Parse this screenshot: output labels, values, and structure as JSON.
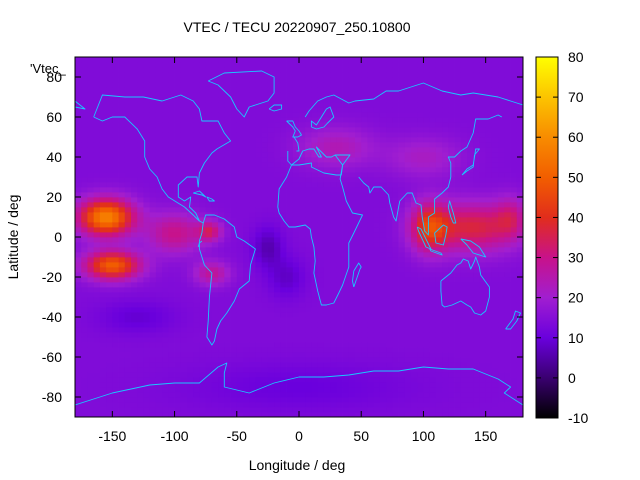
{
  "chart_data": {
    "type": "heatmap",
    "title": "VTEC / TECU 20220907_250.10800",
    "xlabel": "Longitude / deg",
    "ylabel": "Latitude / deg",
    "series_label": "'Vtec_",
    "xlim": [
      -180,
      180
    ],
    "ylim": [
      -90,
      90
    ],
    "xticks": [
      -150,
      -100,
      -50,
      0,
      50,
      100,
      150
    ],
    "yticks": [
      -80,
      -60,
      -40,
      -20,
      0,
      20,
      40,
      60,
      80
    ],
    "colorbar": {
      "min": -10,
      "max": 80,
      "ticks": [
        -10,
        0,
        10,
        20,
        30,
        40,
        50,
        60,
        70,
        80
      ],
      "palette": [
        {
          "v": -10,
          "color": "#000000"
        },
        {
          "v": 0,
          "color": "#3a0070"
        },
        {
          "v": 10,
          "color": "#6a00dd"
        },
        {
          "v": 20,
          "color": "#a11ed0"
        },
        {
          "v": 30,
          "color": "#c8128a"
        },
        {
          "v": 40,
          "color": "#e12d1c"
        },
        {
          "v": 50,
          "color": "#f25e00"
        },
        {
          "v": 60,
          "color": "#f88c00"
        },
        {
          "v": 70,
          "color": "#fcc400"
        },
        {
          "v": 80,
          "color": "#ffff00"
        }
      ]
    },
    "background_level": 14,
    "blobs": [
      {
        "lon": -155,
        "lat": 10,
        "slon": 22,
        "slat": 9,
        "amp": 44
      },
      {
        "lon": -150,
        "lat": -14,
        "slon": 22,
        "slat": 7,
        "amp": 36
      },
      {
        "lon": -100,
        "lat": 2,
        "slon": 22,
        "slat": 10,
        "amp": 16
      },
      {
        "lon": -72,
        "lat": 3,
        "slon": 10,
        "slat": 5,
        "amp": 18
      },
      {
        "lon": -70,
        "lat": -18,
        "slon": 14,
        "slat": 6,
        "amp": 14
      },
      {
        "lon": 105,
        "lat": 5,
        "slon": 15,
        "slat": 12,
        "amp": 26
      },
      {
        "lon": 140,
        "lat": 5,
        "slon": 35,
        "slat": 12,
        "amp": 23
      },
      {
        "lon": 170,
        "lat": 10,
        "slon": 12,
        "slat": 10,
        "amp": 12
      },
      {
        "lon": 30,
        "lat": 45,
        "slon": 30,
        "slat": 10,
        "amp": 10
      },
      {
        "lon": 100,
        "lat": 40,
        "slon": 30,
        "slat": 10,
        "amp": 8
      },
      {
        "lon": -25,
        "lat": -5,
        "slon": 12,
        "slat": 10,
        "amp": -8
      },
      {
        "lon": -10,
        "lat": -20,
        "slon": 15,
        "slat": 10,
        "amp": -6
      },
      {
        "lon": -130,
        "lat": -40,
        "slon": 30,
        "slat": 8,
        "amp": -5
      },
      {
        "lon": 0,
        "lat": -75,
        "slon": 90,
        "slat": 12,
        "amp": -4
      }
    ],
    "coastlines": [
      [
        [
          -165,
          60
        ],
        [
          -158,
          71
        ],
        [
          -140,
          70
        ],
        [
          -125,
          70
        ],
        [
          -110,
          68
        ],
        [
          -95,
          71
        ],
        [
          -85,
          68
        ],
        [
          -80,
          64
        ],
        [
          -78,
          58
        ],
        [
          -65,
          58
        ],
        [
          -60,
          52
        ],
        [
          -55,
          48
        ],
        [
          -66,
          44
        ],
        [
          -70,
          42
        ],
        [
          -76,
          37
        ],
        [
          -80,
          32
        ],
        [
          -81,
          25
        ],
        [
          -82,
          30
        ],
        [
          -90,
          30
        ],
        [
          -97,
          26
        ],
        [
          -97,
          20
        ],
        [
          -92,
          18
        ],
        [
          -87,
          20
        ],
        [
          -88,
          15
        ],
        [
          -83,
          12
        ],
        [
          -80,
          8
        ],
        [
          -77,
          7
        ],
        [
          -80,
          8
        ],
        [
          -85,
          11
        ],
        [
          -92,
          15
        ],
        [
          -105,
          20
        ],
        [
          -110,
          24
        ],
        [
          -114,
          30
        ],
        [
          -117,
          32
        ],
        [
          -120,
          34
        ],
        [
          -124,
          40
        ],
        [
          -124,
          46
        ],
        [
          -124,
          48
        ],
        [
          -130,
          54
        ],
        [
          -140,
          60
        ],
        [
          -150,
          60
        ],
        [
          -158,
          58
        ],
        [
          -165,
          60
        ]
      ],
      [
        [
          -77,
          7
        ],
        [
          -75,
          11
        ],
        [
          -68,
          11
        ],
        [
          -60,
          9
        ],
        [
          -52,
          5
        ],
        [
          -50,
          0
        ],
        [
          -44,
          -2
        ],
        [
          -35,
          -6
        ],
        [
          -39,
          -14
        ],
        [
          -40,
          -22
        ],
        [
          -48,
          -26
        ],
        [
          -52,
          -32
        ],
        [
          -58,
          -38
        ],
        [
          -63,
          -42
        ],
        [
          -66,
          -46
        ],
        [
          -68,
          -52
        ],
        [
          -70,
          -54
        ],
        [
          -74,
          -50
        ],
        [
          -73,
          -42
        ],
        [
          -72,
          -30
        ],
        [
          -70,
          -18
        ],
        [
          -76,
          -14
        ],
        [
          -80,
          -6
        ],
        [
          -80,
          -2
        ],
        [
          -78,
          2
        ],
        [
          -77,
          7
        ]
      ],
      [
        [
          -10,
          58
        ],
        [
          -5,
          58
        ],
        [
          -3,
          55
        ],
        [
          0,
          53
        ],
        [
          2,
          51
        ],
        [
          -1,
          50
        ],
        [
          -5,
          50
        ],
        [
          -3,
          53
        ],
        [
          -5,
          55
        ],
        [
          -10,
          58
        ]
      ],
      [
        [
          -9,
          43
        ],
        [
          -9,
          38
        ],
        [
          -6,
          36
        ],
        [
          0,
          39
        ],
        [
          3,
          43
        ],
        [
          8,
          44
        ],
        [
          12,
          44
        ],
        [
          16,
          40
        ],
        [
          18,
          40
        ],
        [
          14,
          45
        ],
        [
          22,
          40
        ],
        [
          26,
          40
        ],
        [
          29,
          41
        ],
        [
          35,
          36
        ],
        [
          34,
          31
        ],
        [
          30,
          31
        ],
        [
          20,
          32
        ],
        [
          10,
          35
        ],
        [
          10,
          37
        ],
        [
          0,
          36
        ],
        [
          -6,
          36
        ],
        [
          -10,
          30
        ],
        [
          -16,
          24
        ],
        [
          -17,
          15
        ],
        [
          -16,
          12
        ],
        [
          -12,
          8
        ],
        [
          -8,
          5
        ],
        [
          -3,
          5
        ],
        [
          5,
          6
        ],
        [
          9,
          4
        ],
        [
          10,
          0
        ],
        [
          12,
          -5
        ],
        [
          13,
          -12
        ],
        [
          12,
          -18
        ],
        [
          15,
          -27
        ],
        [
          18,
          -34
        ],
        [
          22,
          -34
        ],
        [
          28,
          -33
        ],
        [
          32,
          -28
        ],
        [
          35,
          -24
        ],
        [
          40,
          -15
        ],
        [
          40,
          -10
        ],
        [
          40,
          -3
        ],
        [
          44,
          2
        ],
        [
          51,
          11
        ],
        [
          43,
          12
        ],
        [
          38,
          18
        ],
        [
          35,
          25
        ],
        [
          33,
          29
        ],
        [
          35,
          36
        ],
        [
          41,
          41
        ],
        [
          29,
          41
        ]
      ],
      [
        [
          5,
          60
        ],
        [
          8,
          63
        ],
        [
          15,
          68
        ],
        [
          22,
          70
        ],
        [
          28,
          71
        ],
        [
          40,
          67
        ],
        [
          45,
          68
        ],
        [
          60,
          69
        ],
        [
          70,
          73
        ],
        [
          80,
          73
        ],
        [
          100,
          77
        ],
        [
          115,
          73
        ],
        [
          130,
          71
        ],
        [
          140,
          72
        ],
        [
          160,
          70
        ],
        [
          175,
          67
        ],
        [
          180,
          66
        ]
      ],
      [
        [
          10,
          55
        ],
        [
          10,
          58
        ],
        [
          14,
          56
        ],
        [
          18,
          60
        ],
        [
          22,
          64
        ],
        [
          25,
          65
        ],
        [
          28,
          60
        ],
        [
          23,
          57
        ],
        [
          20,
          55
        ],
        [
          14,
          54
        ],
        [
          10,
          55
        ]
      ],
      [
        [
          48,
          30
        ],
        [
          52,
          27
        ],
        [
          56,
          25
        ],
        [
          57,
          22
        ],
        [
          58,
          23
        ],
        [
          60,
          25
        ],
        [
          66,
          25
        ],
        [
          72,
          21
        ],
        [
          73,
          17
        ],
        [
          76,
          10
        ],
        [
          78,
          8
        ],
        [
          80,
          15
        ],
        [
          81,
          18
        ],
        [
          87,
          22
        ],
        [
          91,
          22
        ],
        [
          94,
          17
        ],
        [
          98,
          16
        ],
        [
          99,
          10
        ],
        [
          101,
          3
        ],
        [
          104,
          1
        ],
        [
          104,
          10
        ],
        [
          109,
          12
        ],
        [
          109,
          19
        ],
        [
          115,
          22
        ],
        [
          120,
          25
        ],
        [
          122,
          30
        ],
        [
          122,
          37
        ],
        [
          120,
          40
        ],
        [
          125,
          40
        ],
        [
          130,
          43
        ],
        [
          135,
          45
        ],
        [
          140,
          52
        ],
        [
          142,
          59
        ],
        [
          152,
          59
        ],
        [
          160,
          61
        ],
        [
          163,
          60
        ]
      ],
      [
        [
          -4,
          50
        ],
        [
          -1,
          47
        ],
        [
          0,
          43
        ],
        [
          -2,
          43
        ]
      ],
      [
        [
          114,
          -22
        ],
        [
          114,
          -27
        ],
        [
          115,
          -34
        ],
        [
          117,
          -35
        ],
        [
          123,
          -34
        ],
        [
          130,
          -32
        ],
        [
          135,
          -34
        ],
        [
          138,
          -35
        ],
        [
          141,
          -38
        ],
        [
          146,
          -39
        ],
        [
          150,
          -37
        ],
        [
          153,
          -30
        ],
        [
          153,
          -25
        ],
        [
          146,
          -19
        ],
        [
          145,
          -15
        ],
        [
          142,
          -10
        ],
        [
          141,
          -12
        ],
        [
          138,
          -16
        ],
        [
          136,
          -12
        ],
        [
          132,
          -11
        ],
        [
          130,
          -13
        ],
        [
          127,
          -14
        ],
        [
          122,
          -18
        ],
        [
          114,
          -22
        ]
      ],
      [
        [
          44,
          -25
        ],
        [
          49,
          -16
        ],
        [
          50,
          -15
        ],
        [
          48,
          -13
        ],
        [
          44,
          -17
        ],
        [
          43,
          -22
        ],
        [
          44,
          -25
        ]
      ],
      [
        [
          95,
          5
        ],
        [
          98,
          4
        ],
        [
          106,
          -6
        ],
        [
          102,
          -5
        ],
        [
          96,
          3
        ],
        [
          95,
          5
        ]
      ],
      [
        [
          105,
          -6
        ],
        [
          114,
          -8
        ],
        [
          115,
          -9
        ],
        [
          106,
          -7
        ],
        [
          105,
          -6
        ]
      ],
      [
        [
          109,
          2
        ],
        [
          116,
          6
        ],
        [
          119,
          5
        ],
        [
          118,
          1
        ],
        [
          116,
          -4
        ],
        [
          110,
          -3
        ],
        [
          109,
          2
        ]
      ],
      [
        [
          131,
          31
        ],
        [
          135,
          34
        ],
        [
          140,
          36
        ],
        [
          141,
          40
        ],
        [
          142,
          44
        ],
        [
          145,
          44
        ],
        [
          141,
          41
        ],
        [
          140,
          35
        ],
        [
          135,
          33
        ],
        [
          131,
          31
        ]
      ],
      [
        [
          -73,
          78
        ],
        [
          -60,
          82
        ],
        [
          -30,
          83
        ],
        [
          -20,
          80
        ],
        [
          -20,
          72
        ],
        [
          -25,
          68
        ],
        [
          -40,
          65
        ],
        [
          -44,
          60
        ],
        [
          -50,
          64
        ],
        [
          -55,
          70
        ],
        [
          -65,
          76
        ],
        [
          -73,
          78
        ]
      ],
      [
        [
          -180,
          -84
        ],
        [
          -160,
          -80
        ],
        [
          -150,
          -78
        ],
        [
          -120,
          -74
        ],
        [
          -100,
          -73
        ],
        [
          -80,
          -73
        ],
        [
          -65,
          -65
        ],
        [
          -58,
          -63
        ],
        [
          -60,
          -68
        ],
        [
          -60,
          -75
        ],
        [
          -40,
          -78
        ],
        [
          -20,
          -73
        ],
        [
          0,
          -70
        ],
        [
          20,
          -70
        ],
        [
          40,
          -69
        ],
        [
          60,
          -67
        ],
        [
          80,
          -67
        ],
        [
          100,
          -65
        ],
        [
          120,
          -66
        ],
        [
          140,
          -66
        ],
        [
          160,
          -71
        ],
        [
          170,
          -75
        ],
        [
          165,
          -78
        ],
        [
          180,
          -84
        ]
      ],
      [
        [
          -180,
          68
        ],
        [
          -172,
          64
        ],
        [
          -180,
          65
        ]
      ],
      [
        [
          120,
          15
        ],
        [
          121,
          18
        ],
        [
          124,
          12
        ],
        [
          126,
          7
        ],
        [
          124,
          7
        ],
        [
          122,
          10
        ],
        [
          120,
          15
        ]
      ],
      [
        [
          130,
          -1
        ],
        [
          138,
          -2
        ],
        [
          145,
          -5
        ],
        [
          150,
          -10
        ],
        [
          140,
          -8
        ],
        [
          135,
          -4
        ],
        [
          130,
          -1
        ]
      ],
      [
        [
          166,
          -46
        ],
        [
          172,
          -41
        ],
        [
          174,
          -37
        ],
        [
          178,
          -38
        ],
        [
          175,
          -42
        ],
        [
          170,
          -46
        ],
        [
          166,
          -46
        ]
      ],
      [
        [
          -78,
          -2
        ],
        [
          -80,
          -3
        ],
        [
          -81,
          -5
        ]
      ],
      [
        [
          -70,
          19
        ],
        [
          -68,
          18
        ],
        [
          -72,
          18
        ],
        [
          -74,
          20
        ],
        [
          -70,
          19
        ]
      ],
      [
        [
          -85,
          22
        ],
        [
          -80,
          23
        ],
        [
          -75,
          20
        ],
        [
          -78,
          21
        ],
        [
          -85,
          22
        ]
      ],
      [
        [
          -24,
          64
        ],
        [
          -20,
          66
        ],
        [
          -14,
          66
        ],
        [
          -14,
          64
        ],
        [
          -20,
          63
        ],
        [
          -24,
          64
        ]
      ]
    ]
  }
}
